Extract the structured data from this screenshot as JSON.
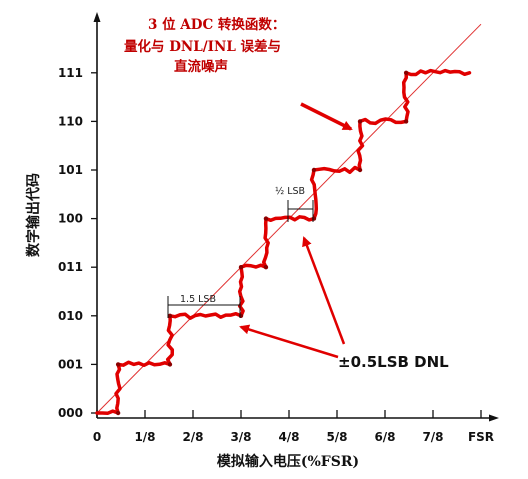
{
  "chart_data": {
    "type": "line",
    "title_lines": [
      "3 位 ADC 转换函数：",
      "量化与 DNL/INL 误差与",
      "直流噪声"
    ],
    "xlabel": "模拟输入电压(%FSR)",
    "ylabel": "数字输出代码",
    "x_tick_labels": [
      "0",
      "1/8",
      "2/8",
      "3/8",
      "4/8",
      "5/8",
      "6/8",
      "7/8",
      "FSR"
    ],
    "y_tick_labels": [
      "000",
      "001",
      "010",
      "011",
      "100",
      "101",
      "110",
      "111"
    ],
    "xlim": [
      0,
      1
    ],
    "ylim": [
      0,
      7
    ],
    "ideal_line": {
      "x": [
        0,
        1
      ],
      "y": [
        0,
        8
      ]
    },
    "transitions": [
      {
        "x": 0.055,
        "from": 0,
        "to": 1
      },
      {
        "x": 0.19,
        "from": 1,
        "to": 2
      },
      {
        "x": 0.375,
        "from": 2,
        "to": 3
      },
      {
        "x": 0.44,
        "from": 3,
        "to": 4
      },
      {
        "x": 0.565,
        "from": 4,
        "to": 5
      },
      {
        "x": 0.685,
        "from": 5,
        "to": 6
      },
      {
        "x": 0.805,
        "from": 6,
        "to": 7
      }
    ],
    "curve_x_end": 0.97,
    "annotations": {
      "step_1_5": "1.5 LSB",
      "step_0_5": "½ LSB",
      "dnl": "±0.5LSB DNL"
    },
    "colors": {
      "curve": "#e00000",
      "ideal_line": "#e03030",
      "arrow": "#e00000",
      "title": "#c00000"
    }
  }
}
